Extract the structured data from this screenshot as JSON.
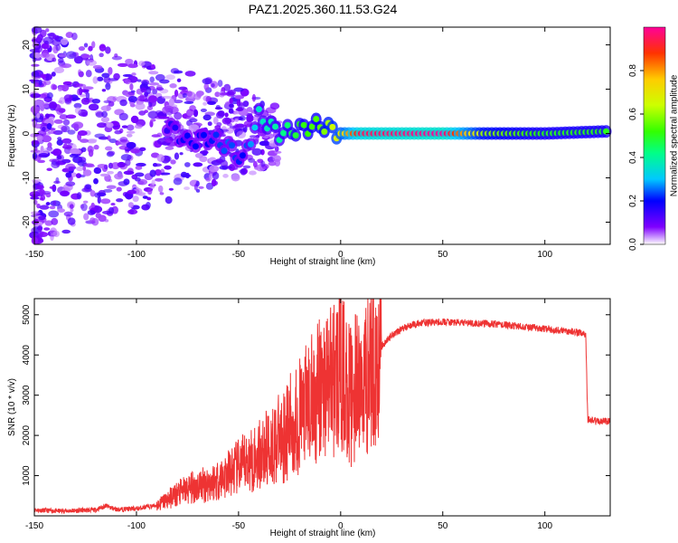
{
  "chart_data": [
    {
      "type": "heatmap",
      "title": "PAZ1.2025.360.11.53.G24",
      "xlabel": "Height of straight line (km)",
      "ylabel": "Frequency (Hz)",
      "xlim": [
        -150,
        132
      ],
      "ylim": [
        -25,
        24
      ],
      "xticks": [
        "-150",
        "-100",
        "-50",
        "0",
        "50",
        "100"
      ],
      "yticks": [
        "20",
        "10",
        "0",
        "-10",
        "-20"
      ],
      "colorbar": {
        "label": "Normalized spectral amplitude",
        "range": [
          0,
          1
        ],
        "ticks": [
          "0.0",
          "0.2",
          "0.4",
          "0.6",
          "0.8"
        ],
        "colors": [
          "#ffffff",
          "#7f00ff",
          "#0000ff",
          "#00c8ff",
          "#00ff88",
          "#33ff00",
          "#ccff00",
          "#ffcc00",
          "#ff3300",
          "#ff0099"
        ]
      },
      "ridge": [
        {
          "x": -85,
          "y": 2,
          "amp": 0.15
        },
        {
          "x": -75,
          "y": -2,
          "amp": 0.2
        },
        {
          "x": -65,
          "y": -1,
          "amp": 0.2
        },
        {
          "x": -55,
          "y": -3,
          "amp": 0.25
        },
        {
          "x": -48,
          "y": -6,
          "amp": 0.2
        },
        {
          "x": -40,
          "y": 4,
          "amp": 0.35
        },
        {
          "x": -30,
          "y": 0,
          "amp": 0.4
        },
        {
          "x": -20,
          "y": 1,
          "amp": 0.5
        },
        {
          "x": -10,
          "y": 2,
          "amp": 0.55
        },
        {
          "x": 0,
          "y": 0,
          "amp": 0.7
        },
        {
          "x": 10,
          "y": 0,
          "amp": 0.95
        },
        {
          "x": 50,
          "y": 0,
          "amp": 1.0
        },
        {
          "x": 70,
          "y": 0,
          "amp": 0.6
        },
        {
          "x": 100,
          "y": 0,
          "amp": 0.5
        },
        {
          "x": 132,
          "y": 0.5,
          "amp": 0.5
        }
      ]
    },
    {
      "type": "line",
      "xlabel": "Height of straight line (km)",
      "ylabel": "SNR (10 * v/v)",
      "xlim": [
        -150,
        132
      ],
      "ylim": [
        0,
        5400
      ],
      "xticks": [
        "-150",
        "-100",
        "-50",
        "0",
        "50",
        "100"
      ],
      "yticks": [
        "1000",
        "2000",
        "3000",
        "4000",
        "5000"
      ],
      "color": "#ee3333",
      "series": [
        {
          "name": "SNR",
          "x": [
            -150,
            -140,
            -130,
            -120,
            -115,
            -110,
            -100,
            -90,
            -85,
            -80,
            -75,
            -70,
            -65,
            -60,
            -55,
            -50,
            -45,
            -40,
            -35,
            -30,
            -25,
            -20,
            -15,
            -10,
            -5,
            0,
            5,
            10,
            15,
            20,
            25,
            30,
            35,
            40,
            50,
            60,
            70,
            80,
            90,
            100,
            110,
            118,
            120,
            121,
            125,
            132
          ],
          "y": [
            150,
            120,
            130,
            150,
            250,
            160,
            180,
            260,
            400,
            550,
            650,
            750,
            800,
            900,
            1050,
            1200,
            1350,
            1500,
            1700,
            1900,
            2200,
            2500,
            2800,
            3100,
            3400,
            3600,
            3000,
            3300,
            3800,
            4200,
            4500,
            4650,
            4750,
            4800,
            4820,
            4800,
            4780,
            4750,
            4700,
            4650,
            4600,
            4550,
            4500,
            2400,
            2350,
            2350
          ]
        }
      ]
    }
  ]
}
